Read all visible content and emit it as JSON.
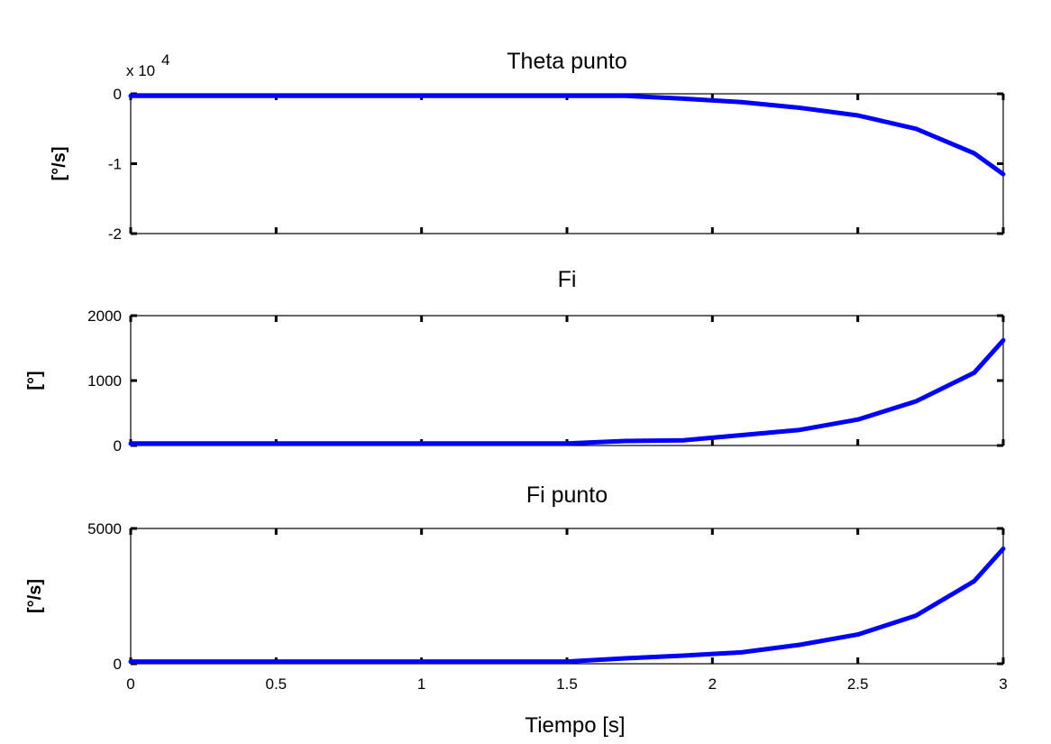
{
  "xlabel": "Tiempo [s]",
  "colors": {
    "line": "#0000ff",
    "axis": "#000000",
    "background": "#ffffff"
  },
  "chart_data": [
    {
      "type": "line",
      "title": "Theta punto",
      "ylabel": "[°/s]",
      "xlim": [
        0,
        3
      ],
      "ylim": [
        -2,
        0
      ],
      "y_exponent_label": {
        "base": "x 10",
        "exponent": "4"
      },
      "xticks": [
        0,
        0.5,
        1,
        1.5,
        2,
        2.5,
        3
      ],
      "yticks": [
        {
          "value": 0,
          "label": "0"
        },
        {
          "value": -1,
          "label": "-1"
        },
        {
          "value": -2,
          "label": "-2"
        }
      ],
      "grid": false,
      "series": [
        {
          "x": [
            0,
            0.2,
            0.4,
            0.6,
            0.8,
            1.0,
            1.2,
            1.4,
            1.6,
            1.7,
            1.9,
            2.1,
            2.3,
            2.5,
            2.7,
            2.9,
            3.0
          ],
          "y": [
            -0.03,
            -0.03,
            -0.03,
            -0.03,
            -0.03,
            -0.03,
            -0.03,
            -0.03,
            -0.03,
            -0.03,
            -0.07,
            -0.12,
            -0.2,
            -0.31,
            -0.5,
            -0.85,
            -1.15
          ]
        }
      ]
    },
    {
      "type": "line",
      "title": "Fi",
      "ylabel": "[°]",
      "xlim": [
        0,
        3
      ],
      "ylim": [
        0,
        2000
      ],
      "xticks": [
        0,
        0.5,
        1,
        1.5,
        2,
        2.5,
        3
      ],
      "yticks": [
        {
          "value": 0,
          "label": "0"
        },
        {
          "value": 1000,
          "label": "1000"
        },
        {
          "value": 2000,
          "label": "2000"
        }
      ],
      "grid": false,
      "series": [
        {
          "x": [
            0,
            0.3,
            0.6,
            0.9,
            1.2,
            1.5,
            1.7,
            1.9,
            2.1,
            2.3,
            2.5,
            2.7,
            2.9,
            3.0
          ],
          "y": [
            30,
            30,
            30,
            30,
            30,
            30,
            70,
            80,
            160,
            240,
            400,
            680,
            1120,
            1620
          ]
        }
      ]
    },
    {
      "type": "line",
      "title": "Fi punto",
      "ylabel": "[°/s]",
      "xlim": [
        0,
        3
      ],
      "ylim": [
        0,
        5000
      ],
      "xticks": [
        0,
        0.5,
        1,
        1.5,
        2,
        2.5,
        3
      ],
      "xticklabels": [
        "0",
        "0.5",
        "1",
        "1.5",
        "2",
        "2.5",
        "3"
      ],
      "yticks": [
        {
          "value": 0,
          "label": "0"
        },
        {
          "value": 5000,
          "label": "5000"
        }
      ],
      "grid": false,
      "series": [
        {
          "x": [
            0,
            0.3,
            0.6,
            0.9,
            1.2,
            1.5,
            1.7,
            1.9,
            2.1,
            2.3,
            2.5,
            2.7,
            2.9,
            3.0
          ],
          "y": [
            80,
            80,
            80,
            80,
            80,
            80,
            200,
            300,
            420,
            700,
            1080,
            1780,
            3050,
            4250
          ]
        }
      ]
    }
  ]
}
